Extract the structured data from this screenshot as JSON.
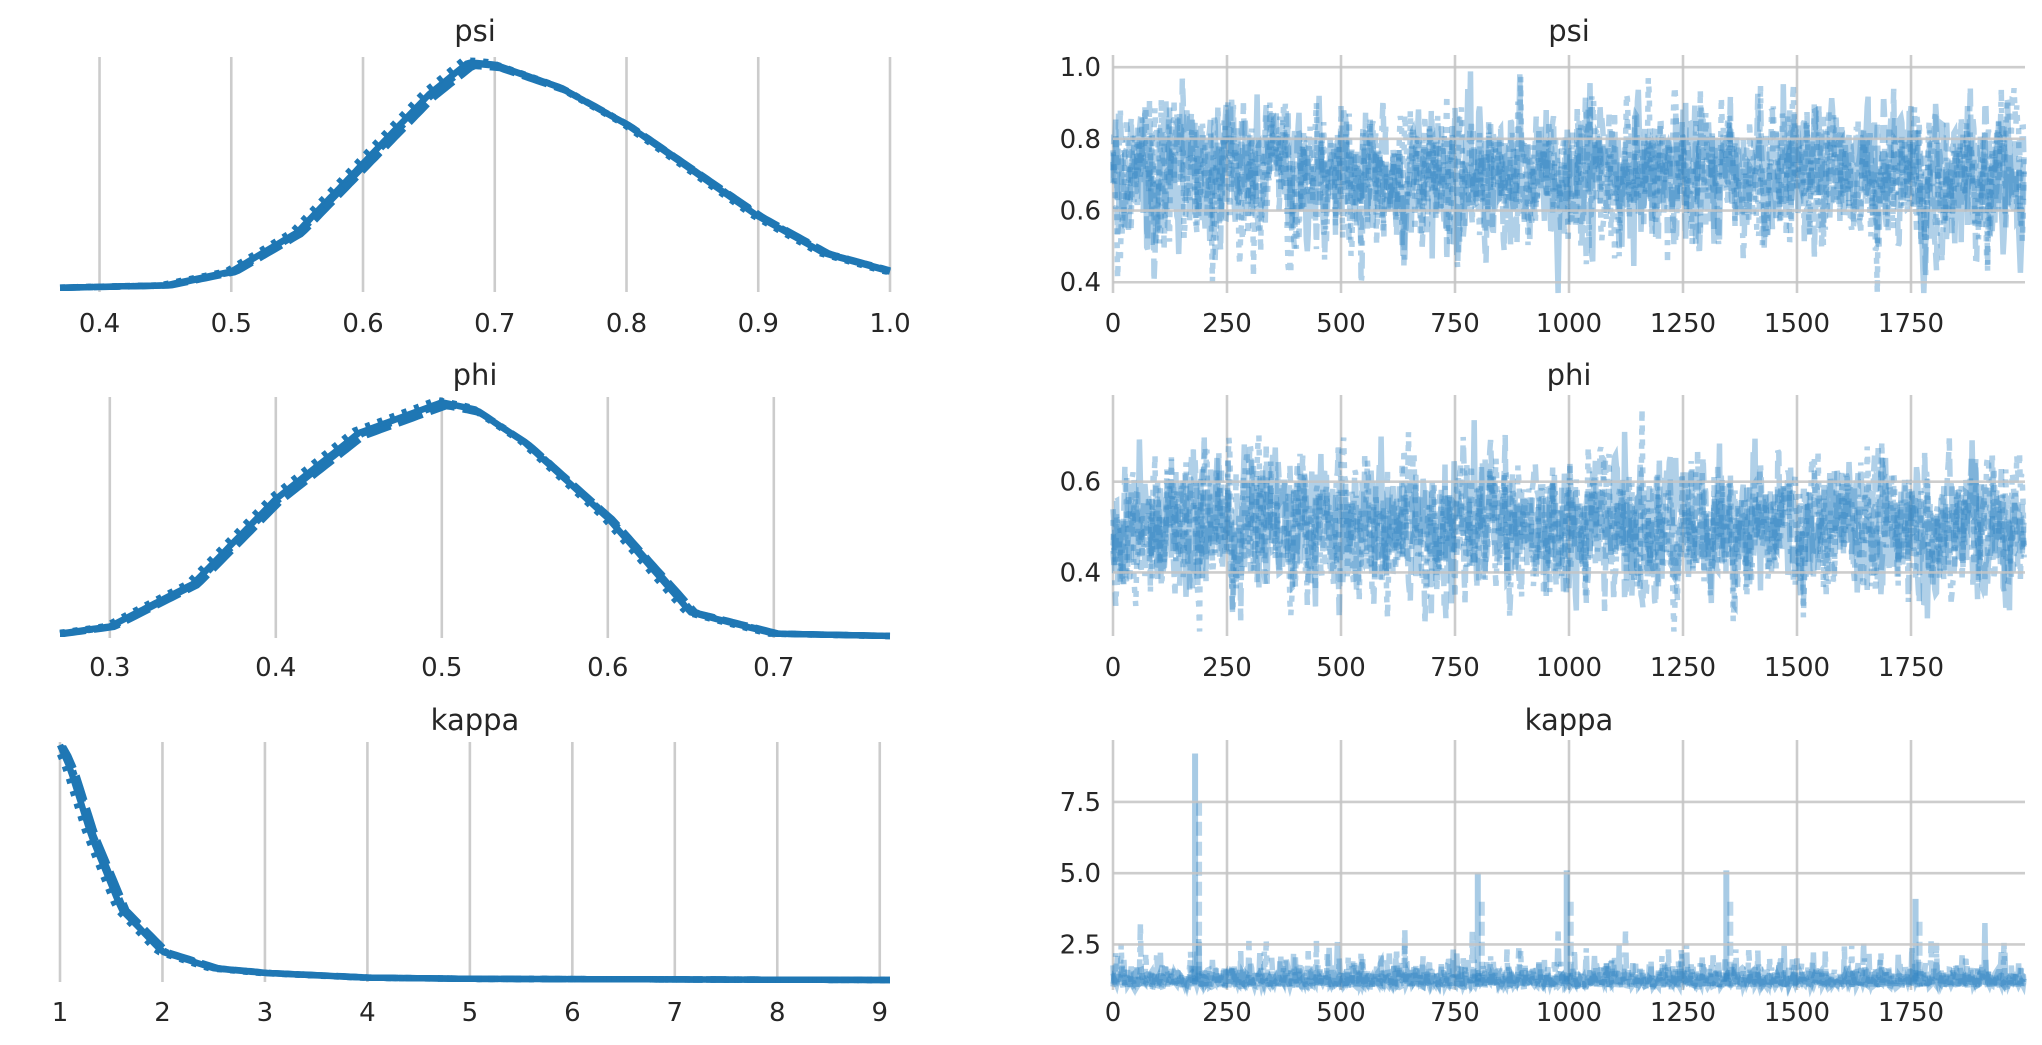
{
  "colors": {
    "line": "#1f77b4",
    "trace": "#2f84c2",
    "grid": "#cccccc",
    "text": "#262626"
  },
  "chart_data": [
    {
      "type": "line",
      "title": "psi",
      "xlabel": "",
      "ylabel": "",
      "xlim": [
        0.37,
        1.0
      ],
      "xticks": [
        "0.4",
        "0.5",
        "0.6",
        "0.7",
        "0.8",
        "0.9",
        "1.0"
      ],
      "series": [
        {
          "x": [
            0.37,
            0.45,
            0.5,
            0.55,
            0.6,
            0.65,
            0.68,
            0.7,
            0.75,
            0.8,
            0.85,
            0.9,
            0.95,
            1.0
          ],
          "y": [
            0.01,
            0.02,
            0.08,
            0.25,
            0.55,
            0.85,
            0.99,
            0.98,
            0.88,
            0.72,
            0.52,
            0.32,
            0.16,
            0.08
          ]
        }
      ]
    },
    {
      "type": "line",
      "title": "psi",
      "xlabel": "",
      "ylabel": "",
      "xlim": [
        0,
        2000
      ],
      "ylim": [
        0.37,
        1.02
      ],
      "xticks": [
        "0",
        "250",
        "500",
        "750",
        "1000",
        "1250",
        "1500",
        "1750"
      ],
      "yticks": [
        "0.4",
        "0.6",
        "0.8",
        "1.0"
      ],
      "trace": {
        "mean": 0.7,
        "sd": 0.09,
        "min": 0.37,
        "max": 1.0
      }
    },
    {
      "type": "line",
      "title": "phi",
      "xlabel": "",
      "ylabel": "",
      "xlim": [
        0.27,
        0.77
      ],
      "xticks": [
        "0.3",
        "0.4",
        "0.5",
        "0.6",
        "0.7"
      ],
      "series": [
        {
          "x": [
            0.27,
            0.3,
            0.35,
            0.4,
            0.45,
            0.5,
            0.52,
            0.55,
            0.6,
            0.65,
            0.7,
            0.77
          ],
          "y": [
            0.01,
            0.04,
            0.22,
            0.58,
            0.86,
            0.99,
            0.96,
            0.82,
            0.5,
            0.1,
            0.01,
            0.0
          ]
        }
      ]
    },
    {
      "type": "line",
      "title": "phi",
      "xlabel": "",
      "ylabel": "",
      "xlim": [
        0,
        2000
      ],
      "ylim": [
        0.26,
        0.78
      ],
      "xticks": [
        "0",
        "250",
        "500",
        "750",
        "1000",
        "1250",
        "1500",
        "1750"
      ],
      "yticks": [
        "0.4",
        "0.6"
      ],
      "trace": {
        "mean": 0.5,
        "sd": 0.07,
        "min": 0.27,
        "max": 0.76
      }
    },
    {
      "type": "line",
      "title": "kappa",
      "xlabel": "",
      "ylabel": "",
      "xlim": [
        1,
        9.1
      ],
      "xticks": [
        "1",
        "2",
        "3",
        "4",
        "5",
        "6",
        "7",
        "8",
        "9"
      ],
      "series": [
        {
          "x": [
            1.0,
            1.1,
            1.3,
            1.6,
            2.0,
            2.5,
            3.0,
            4.0,
            5.0,
            9.0
          ],
          "y": [
            1.0,
            0.9,
            0.62,
            0.3,
            0.12,
            0.05,
            0.03,
            0.01,
            0.005,
            0.0
          ]
        }
      ]
    },
    {
      "type": "line",
      "title": "kappa",
      "xlabel": "",
      "ylabel": "",
      "xlim": [
        0,
        2000
      ],
      "ylim": [
        0.9,
        9.5
      ],
      "xticks": [
        "0",
        "250",
        "500",
        "750",
        "1000",
        "1250",
        "1500",
        "1750"
      ],
      "yticks": [
        "2.5",
        "5.0",
        "7.5"
      ],
      "trace": {
        "mean": 1.4,
        "sd": 0.35,
        "min": 1.0,
        "max": 9.2
      },
      "spikes": [
        {
          "x": 180,
          "y": 9.2
        },
        {
          "x": 800,
          "y": 5.0
        },
        {
          "x": 995,
          "y": 5.1
        },
        {
          "x": 1345,
          "y": 5.1
        },
        {
          "x": 1760,
          "y": 4.1
        }
      ]
    }
  ]
}
